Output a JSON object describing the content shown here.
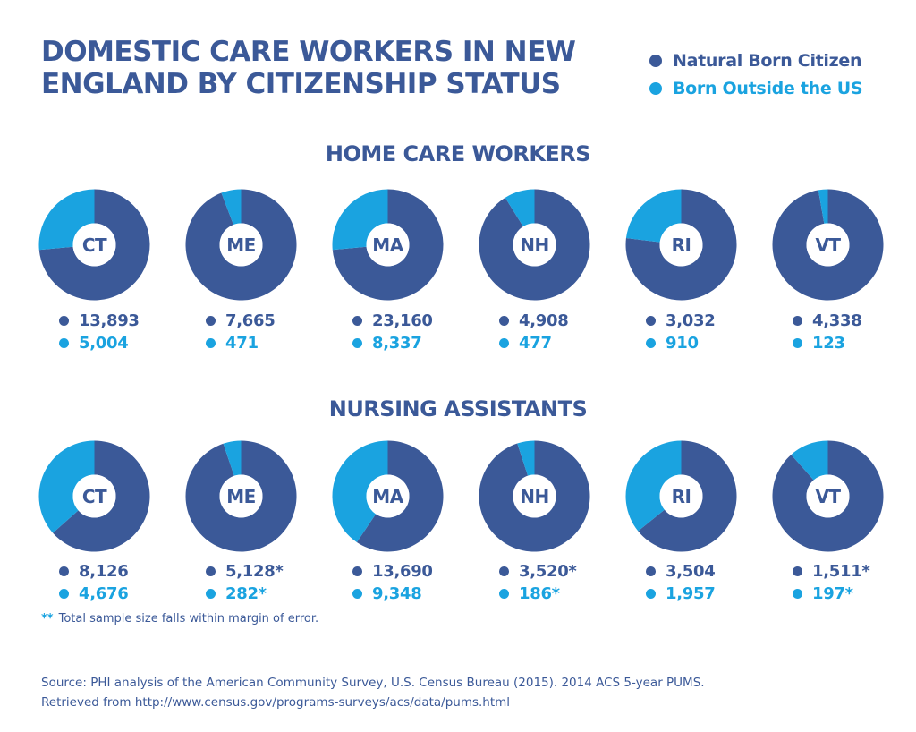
{
  "title_lines": [
    "DOMESTIC CARE WORKERS IN NEW",
    "ENGLAND BY CITIZENSHIP STATUS"
  ],
  "colors": {
    "native": "#3b5998",
    "foreign": "#1aa3e0"
  },
  "legend": [
    {
      "label": "Natural Born Citizen",
      "color": "#3b5998"
    },
    {
      "label": "Born Outside the US",
      "color": "#1aa3e0"
    }
  ],
  "sections": [
    {
      "title": "HOME CARE WORKERS",
      "states": [
        {
          "state": "CT",
          "native": "13,893",
          "foreign": "5,004"
        },
        {
          "state": "ME",
          "native": "7,665",
          "foreign": "471"
        },
        {
          "state": "MA",
          "native": "23,160",
          "foreign": "8,337"
        },
        {
          "state": "NH",
          "native": "4,908",
          "foreign": "477"
        },
        {
          "state": "RI",
          "native": "3,032",
          "foreign": "910"
        },
        {
          "state": "VT",
          "native": "4,338",
          "foreign": "123"
        }
      ]
    },
    {
      "title": "NURSING ASSISTANTS",
      "states": [
        {
          "state": "CT",
          "native": "8,126",
          "foreign": "4,676"
        },
        {
          "state": "ME",
          "native": "5,128*",
          "foreign": "282*"
        },
        {
          "state": "MA",
          "native": "13,690",
          "foreign": "9,348"
        },
        {
          "state": "NH",
          "native": "3,520*",
          "foreign": "186*"
        },
        {
          "state": "RI",
          "native": "3,504",
          "foreign": "1,957"
        },
        {
          "state": "VT",
          "native": "1,511*",
          "foreign": "197*"
        }
      ]
    }
  ],
  "chart_data": [
    {
      "type": "pie",
      "title": "HOME CARE WORKERS",
      "categories": [
        "CT",
        "ME",
        "MA",
        "NH",
        "RI",
        "VT"
      ],
      "series": [
        {
          "name": "Natural Born Citizen",
          "values": [
            13893,
            7665,
            23160,
            4908,
            3032,
            4338
          ]
        },
        {
          "name": "Born Outside the US",
          "values": [
            5004,
            471,
            8337,
            477,
            910,
            123
          ]
        }
      ]
    },
    {
      "type": "pie",
      "title": "NURSING ASSISTANTS",
      "categories": [
        "CT",
        "ME",
        "MA",
        "NH",
        "RI",
        "VT"
      ],
      "series": [
        {
          "name": "Natural Born Citizen",
          "values": [
            8126,
            5128,
            13690,
            3520,
            3504,
            1511
          ]
        },
        {
          "name": "Born Outside the US",
          "values": [
            4676,
            282,
            9348,
            186,
            1957,
            197
          ]
        }
      ]
    }
  ],
  "footnote": {
    "stars": "**",
    "text": "Total sample size falls within margin of error."
  },
  "source_lines": [
    "Source: PHI analysis of the American Community Survey, U.S. Census Bureau (2015). 2014 ACS 5-year PUMS.",
    "Retrieved from http://www.census.gov/programs-surveys/acs/data/pums.html"
  ]
}
